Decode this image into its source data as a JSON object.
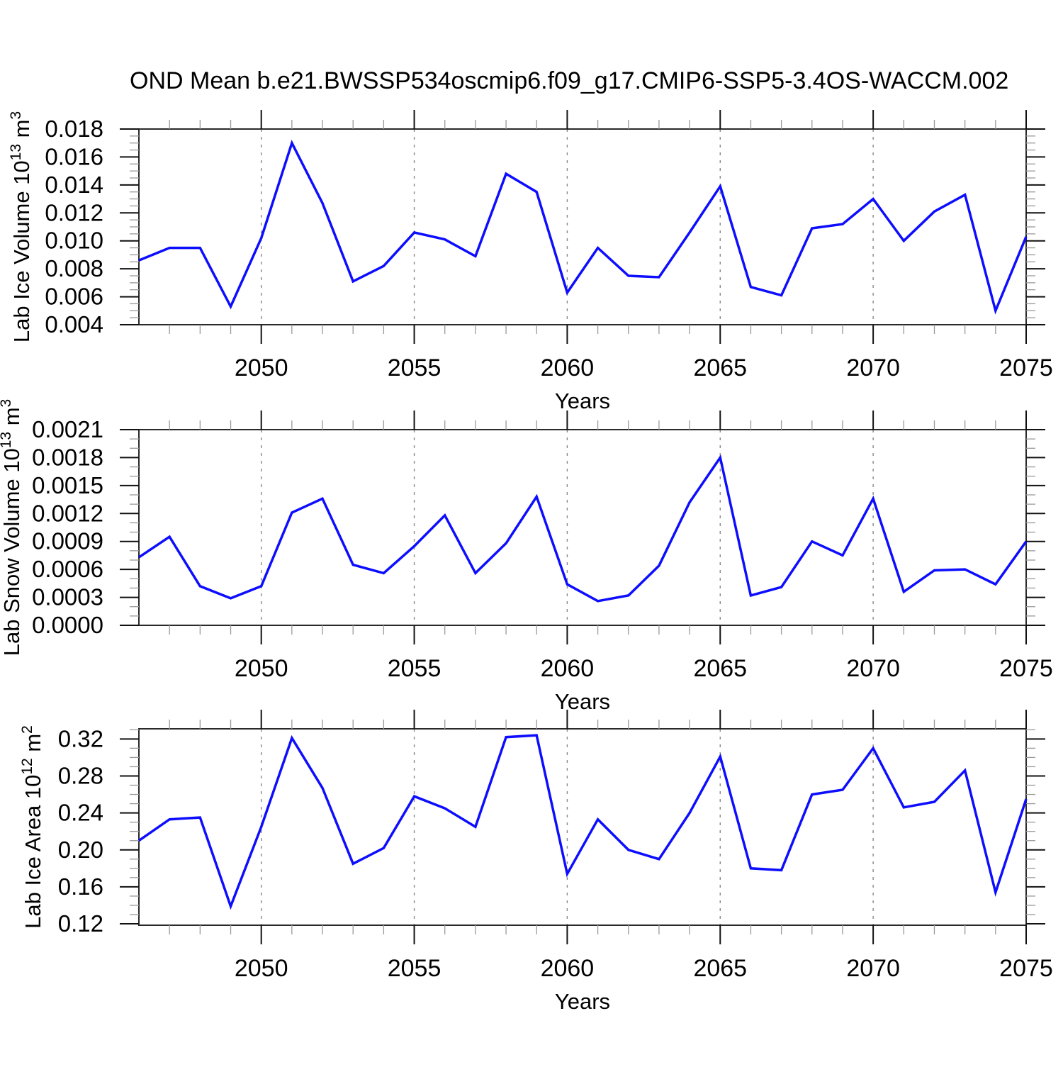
{
  "title": "OND Mean b.e21.BWSSP534oscmip6.f09_g17.CMIP6-SSP5-3.4OS-WACCM.002",
  "colors": {
    "line": "#0d0dff",
    "axis": "#2a2a2a",
    "major_tick": "#111111",
    "minor_tick": "#999999",
    "grid": "#888888",
    "text": "#000000"
  },
  "chart_data": [
    {
      "name": "ice-volume-panel",
      "type": "line",
      "xlabel": "Years",
      "ylabel": {
        "text": "Lab Ice Volume",
        "scale": "10",
        "scale_exp": "13",
        "unit": "m",
        "unit_exp": "3"
      },
      "xlim": [
        2046,
        2075
      ],
      "ylim": [
        0.004,
        0.018
      ],
      "yticks": [
        0.004,
        0.006,
        0.008,
        0.01,
        0.012,
        0.014,
        0.016,
        0.018
      ],
      "ytick_labels": [
        "0.004",
        "0.006",
        "0.008",
        "0.010",
        "0.012",
        "0.014",
        "0.016",
        "0.018"
      ],
      "y_minor_step": 0.0005,
      "xticks": [
        2050,
        2055,
        2060,
        2065,
        2070,
        2075
      ],
      "xtick_labels": [
        "2050",
        "2055",
        "2060",
        "2065",
        "2070",
        "2075"
      ],
      "x_minor_step": 1,
      "grid_xticks": [
        2050,
        2055,
        2060,
        2065,
        2070
      ],
      "x": [
        2046,
        2047,
        2048,
        2049,
        2050,
        2051,
        2052,
        2053,
        2054,
        2055,
        2056,
        2057,
        2058,
        2059,
        2060,
        2061,
        2062,
        2063,
        2064,
        2065,
        2066,
        2067,
        2068,
        2069,
        2070,
        2071,
        2072,
        2073,
        2074,
        2075
      ],
      "values": [
        0.0086,
        0.0095,
        0.0095,
        0.0053,
        0.0102,
        0.017,
        0.0127,
        0.0071,
        0.0082,
        0.0106,
        0.0101,
        0.0089,
        0.0148,
        0.0135,
        0.0063,
        0.0095,
        0.0075,
        0.0074,
        0.0106,
        0.0139,
        0.0067,
        0.0061,
        0.0109,
        0.0112,
        0.013,
        0.01,
        0.0121,
        0.0133,
        0.005,
        0.0103
      ]
    },
    {
      "name": "snow-volume-panel",
      "type": "line",
      "xlabel": "Years",
      "ylabel": {
        "text": "Lab Snow Volume",
        "scale": "10",
        "scale_exp": "13",
        "unit": "m",
        "unit_exp": "3"
      },
      "xlim": [
        2046,
        2075
      ],
      "ylim": [
        0.0,
        0.0021
      ],
      "yticks": [
        0.0,
        0.0003,
        0.0006,
        0.0009,
        0.0012,
        0.0015,
        0.0018,
        0.0021
      ],
      "ytick_labels": [
        "0.0000",
        "0.0003",
        "0.0006",
        "0.0009",
        "0.0012",
        "0.0015",
        "0.0018",
        "0.0021"
      ],
      "y_minor_step": 0.0001,
      "xticks": [
        2050,
        2055,
        2060,
        2065,
        2070,
        2075
      ],
      "xtick_labels": [
        "2050",
        "2055",
        "2060",
        "2065",
        "2070",
        "2075"
      ],
      "x_minor_step": 1,
      "grid_xticks": [
        2050,
        2055,
        2060,
        2065,
        2070
      ],
      "x": [
        2046,
        2047,
        2048,
        2049,
        2050,
        2051,
        2052,
        2053,
        2054,
        2055,
        2056,
        2057,
        2058,
        2059,
        2060,
        2061,
        2062,
        2063,
        2064,
        2065,
        2066,
        2067,
        2068,
        2069,
        2070,
        2071,
        2072,
        2073,
        2074,
        2075
      ],
      "values": [
        0.00073,
        0.00095,
        0.00042,
        0.00029,
        0.00042,
        0.00121,
        0.00136,
        0.00065,
        0.00056,
        0.00085,
        0.00118,
        0.00056,
        0.00088,
        0.00138,
        0.00044,
        0.00026,
        0.00032,
        0.00064,
        0.00132,
        0.0018,
        0.00032,
        0.00041,
        0.0009,
        0.00075,
        0.00136,
        0.00036,
        0.00059,
        0.0006,
        0.00044,
        0.0009
      ]
    },
    {
      "name": "ice-area-panel",
      "type": "line",
      "xlabel": "Years",
      "ylabel": {
        "text": "Lab Ice Area",
        "scale": "10",
        "scale_exp": "12",
        "unit": "m",
        "unit_exp": "2"
      },
      "xlim": [
        2046,
        2075
      ],
      "ylim": [
        0.1185,
        0.331
      ],
      "yticks": [
        0.12,
        0.16,
        0.2,
        0.24,
        0.28,
        0.32
      ],
      "ytick_labels": [
        "0.12",
        "0.16",
        "0.20",
        "0.24",
        "0.28",
        "0.32"
      ],
      "y_minor_step": 0.01,
      "xticks": [
        2050,
        2055,
        2060,
        2065,
        2070,
        2075
      ],
      "xtick_labels": [
        "2050",
        "2055",
        "2060",
        "2065",
        "2070",
        "2075"
      ],
      "x_minor_step": 1,
      "grid_xticks": [
        2050,
        2055,
        2060,
        2065,
        2070
      ],
      "x": [
        2046,
        2047,
        2048,
        2049,
        2050,
        2051,
        2052,
        2053,
        2054,
        2055,
        2056,
        2057,
        2058,
        2059,
        2060,
        2061,
        2062,
        2063,
        2064,
        2065,
        2066,
        2067,
        2068,
        2069,
        2070,
        2071,
        2072,
        2073,
        2074,
        2075
      ],
      "values": [
        0.21,
        0.233,
        0.235,
        0.139,
        0.225,
        0.321,
        0.267,
        0.185,
        0.202,
        0.258,
        0.245,
        0.225,
        0.322,
        0.324,
        0.174,
        0.233,
        0.2,
        0.19,
        0.24,
        0.301,
        0.18,
        0.178,
        0.26,
        0.265,
        0.31,
        0.246,
        0.252,
        0.286,
        0.154,
        0.255
      ]
    }
  ]
}
